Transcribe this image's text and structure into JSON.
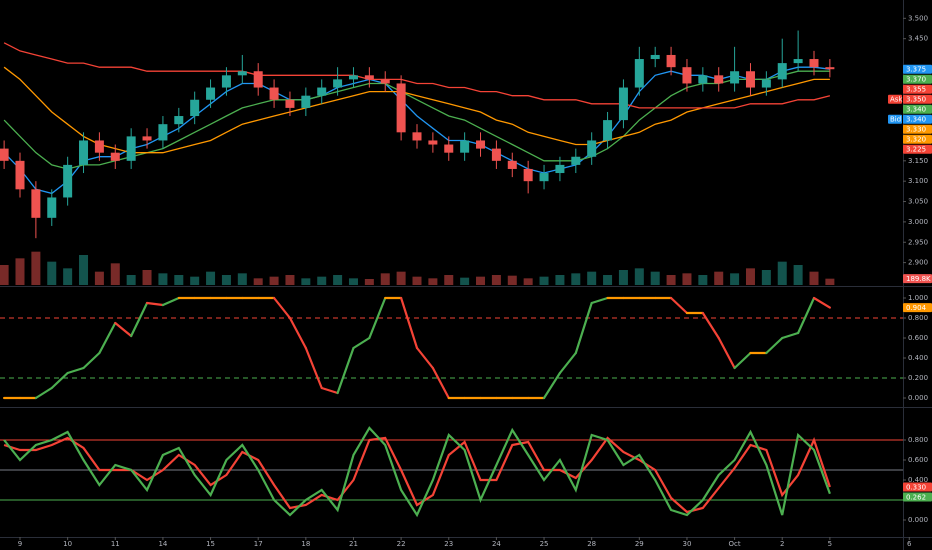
{
  "chart_data": [
    {
      "type": "candlestick",
      "open": [
        3.18,
        3.15,
        3.08,
        3.01,
        3.06,
        3.14,
        3.2,
        3.17,
        3.15,
        3.21,
        3.2,
        3.24,
        3.26,
        3.3,
        3.33,
        3.36,
        3.37,
        3.33,
        3.3,
        3.28,
        3.31,
        3.33,
        3.35,
        3.36,
        3.35,
        3.34,
        3.22,
        3.2,
        3.19,
        3.17,
        3.2,
        3.18,
        3.15,
        3.13,
        3.1,
        3.12,
        3.14,
        3.16,
        3.2,
        3.25,
        3.33,
        3.4,
        3.41,
        3.38,
        3.34,
        3.36,
        3.34,
        3.37,
        3.33,
        3.35,
        3.39,
        3.4,
        3.38
      ],
      "high": [
        3.2,
        3.17,
        3.1,
        3.08,
        3.16,
        3.22,
        3.22,
        3.19,
        3.23,
        3.23,
        3.26,
        3.28,
        3.32,
        3.35,
        3.38,
        3.41,
        3.39,
        3.35,
        3.32,
        3.33,
        3.35,
        3.38,
        3.38,
        3.38,
        3.37,
        3.36,
        3.24,
        3.22,
        3.21,
        3.22,
        3.22,
        3.2,
        3.17,
        3.15,
        3.14,
        3.16,
        3.18,
        3.22,
        3.27,
        3.35,
        3.43,
        3.43,
        3.43,
        3.4,
        3.38,
        3.38,
        3.43,
        3.39,
        3.37,
        3.45,
        3.47,
        3.42,
        3.4
      ],
      "low": [
        3.13,
        3.06,
        2.96,
        2.99,
        3.04,
        3.12,
        3.15,
        3.13,
        3.13,
        3.18,
        3.18,
        3.22,
        3.24,
        3.28,
        3.31,
        3.34,
        3.31,
        3.28,
        3.26,
        3.26,
        3.29,
        3.31,
        3.33,
        3.33,
        3.32,
        3.2,
        3.18,
        3.17,
        3.15,
        3.15,
        3.16,
        3.13,
        3.11,
        3.07,
        3.08,
        3.1,
        3.12,
        3.14,
        3.18,
        3.23,
        3.31,
        3.38,
        3.36,
        3.32,
        3.32,
        3.32,
        3.32,
        3.31,
        3.31,
        3.33,
        3.37,
        3.36,
        3.355
      ],
      "close": [
        3.15,
        3.08,
        3.01,
        3.06,
        3.14,
        3.2,
        3.17,
        3.15,
        3.21,
        3.2,
        3.24,
        3.26,
        3.3,
        3.33,
        3.36,
        3.37,
        3.33,
        3.3,
        3.28,
        3.31,
        3.33,
        3.35,
        3.36,
        3.35,
        3.34,
        3.22,
        3.2,
        3.19,
        3.17,
        3.2,
        3.18,
        3.15,
        3.13,
        3.1,
        3.12,
        3.14,
        3.16,
        3.2,
        3.25,
        3.33,
        3.4,
        3.41,
        3.38,
        3.34,
        3.36,
        3.34,
        3.37,
        3.33,
        3.35,
        3.39,
        3.4,
        3.38,
        3.375
      ],
      "volume": [
        600,
        800,
        1000,
        700,
        500,
        900,
        400,
        650,
        300,
        450,
        350,
        300,
        250,
        400,
        300,
        350,
        200,
        250,
        300,
        200,
        250,
        300,
        200,
        180,
        350,
        400,
        250,
        200,
        300,
        220,
        250,
        300,
        280,
        200,
        250,
        300,
        350,
        400,
        300,
        450,
        500,
        400,
        300,
        350,
        300,
        400,
        350,
        500,
        450,
        700,
        600,
        400,
        189.8
      ],
      "volume_tag": {
        "value": 189.8,
        "label": "189.8K",
        "color": "#ef5350"
      },
      "vlim": [
        0,
        1500
      ],
      "up_color": "#26a69a",
      "down_color": "#ef5350",
      "ylim": [
        2.845,
        3.545
      ],
      "yticks": [
        {
          "value": 3.5,
          "label": "3.500"
        },
        {
          "value": 3.45,
          "label": "3.450"
        },
        {
          "value": 3.15,
          "label": "3.150"
        },
        {
          "value": 3.1,
          "label": "3.100"
        },
        {
          "value": 3.05,
          "label": "3.050"
        },
        {
          "value": 3.0,
          "label": "3.000"
        },
        {
          "value": 2.95,
          "label": "2.950"
        },
        {
          "value": 2.9,
          "label": "2.900"
        }
      ],
      "series": [
        {
          "color": "#2196f3",
          "values": [
            3.17,
            3.13,
            3.08,
            3.07,
            3.1,
            3.15,
            3.16,
            3.16,
            3.18,
            3.19,
            3.21,
            3.23,
            3.26,
            3.29,
            3.32,
            3.34,
            3.34,
            3.32,
            3.3,
            3.3,
            3.31,
            3.33,
            3.34,
            3.35,
            3.34,
            3.3,
            3.26,
            3.23,
            3.2,
            3.2,
            3.19,
            3.17,
            3.15,
            3.13,
            3.12,
            3.13,
            3.14,
            3.17,
            3.21,
            3.26,
            3.32,
            3.36,
            3.37,
            3.36,
            3.36,
            3.35,
            3.36,
            3.35,
            3.35,
            3.37,
            3.38,
            3.38,
            3.375
          ]
        },
        {
          "color": "#4caf50",
          "values": [
            3.25,
            3.21,
            3.17,
            3.14,
            3.13,
            3.14,
            3.14,
            3.15,
            3.16,
            3.17,
            3.18,
            3.2,
            3.22,
            3.24,
            3.26,
            3.28,
            3.29,
            3.3,
            3.3,
            3.3,
            3.31,
            3.32,
            3.33,
            3.34,
            3.34,
            3.32,
            3.3,
            3.28,
            3.26,
            3.25,
            3.23,
            3.21,
            3.19,
            3.17,
            3.15,
            3.15,
            3.15,
            3.16,
            3.18,
            3.21,
            3.25,
            3.28,
            3.31,
            3.33,
            3.34,
            3.34,
            3.35,
            3.35,
            3.35,
            3.36,
            3.37,
            3.37,
            3.37
          ]
        },
        {
          "color": "#ff9800",
          "values": [
            3.38,
            3.35,
            3.31,
            3.27,
            3.24,
            3.21,
            3.19,
            3.18,
            3.17,
            3.17,
            3.17,
            3.18,
            3.19,
            3.2,
            3.22,
            3.24,
            3.25,
            3.26,
            3.27,
            3.28,
            3.29,
            3.3,
            3.31,
            3.32,
            3.32,
            3.32,
            3.31,
            3.3,
            3.29,
            3.28,
            3.27,
            3.25,
            3.24,
            3.22,
            3.21,
            3.2,
            3.19,
            3.19,
            3.2,
            3.21,
            3.22,
            3.24,
            3.25,
            3.27,
            3.28,
            3.29,
            3.3,
            3.31,
            3.32,
            3.33,
            3.34,
            3.35,
            3.35
          ]
        },
        {
          "color": "#f44336",
          "values": [
            3.44,
            3.42,
            3.41,
            3.4,
            3.39,
            3.39,
            3.38,
            3.38,
            3.38,
            3.37,
            3.37,
            3.37,
            3.37,
            3.37,
            3.37,
            3.37,
            3.36,
            3.36,
            3.36,
            3.36,
            3.36,
            3.36,
            3.36,
            3.35,
            3.35,
            3.35,
            3.34,
            3.34,
            3.33,
            3.33,
            3.32,
            3.32,
            3.31,
            3.31,
            3.3,
            3.3,
            3.3,
            3.29,
            3.29,
            3.29,
            3.28,
            3.28,
            3.28,
            3.28,
            3.28,
            3.28,
            3.28,
            3.29,
            3.29,
            3.29,
            3.3,
            3.3,
            3.31
          ]
        }
      ],
      "price_tags": [
        {
          "value": 3.375,
          "label": "3.375",
          "color": "#2196f3"
        },
        {
          "value": 3.37,
          "label": "3.370",
          "color": "#4caf50"
        },
        {
          "value": 3.355,
          "label": "3.355",
          "color": "#f44336"
        },
        {
          "value": 3.35,
          "label": "3.350",
          "color": "#f44336",
          "side": "Ask"
        },
        {
          "value": 3.34,
          "label": "3.340",
          "color": "#4caf50"
        },
        {
          "value": 3.34,
          "label": "3.340",
          "color": "#2196f3",
          "side": "Bid"
        },
        {
          "value": 3.33,
          "label": "3.330",
          "color": "#ff9800"
        },
        {
          "value": 3.32,
          "label": "3.320",
          "color": "#ff9800"
        },
        {
          "value": 3.225,
          "label": "3.225",
          "color": "#f44336"
        }
      ]
    },
    {
      "type": "line",
      "values": [
        0,
        0,
        0,
        0.1,
        0.25,
        0.3,
        0.45,
        0.75,
        0.62,
        0.95,
        0.93,
        1,
        1,
        1,
        1,
        1,
        1,
        1,
        0.8,
        0.5,
        0.1,
        0.05,
        0.5,
        0.6,
        1,
        1,
        0.5,
        0.3,
        0,
        0,
        0,
        0,
        0,
        0,
        0,
        0.25,
        0.45,
        0.95,
        1,
        1,
        1,
        1,
        1,
        0.85,
        0.85,
        0.6,
        0.3,
        0.45,
        0.45,
        0.6,
        0.65,
        1,
        0.904
      ],
      "colors": {
        "up": "#4caf50",
        "down": "#f44336",
        "flat": "#ff9800"
      },
      "ylim": [
        -0.07,
        1.1
      ],
      "yticks": [
        {
          "value": 1,
          "label": "1.000"
        },
        {
          "value": 0.8,
          "label": "0.800"
        },
        {
          "value": 0.6,
          "label": "0.600"
        },
        {
          "value": 0.4,
          "label": "0.400"
        },
        {
          "value": 0.2,
          "label": "0.200"
        },
        {
          "value": 0,
          "label": "0.000"
        }
      ],
      "levels": [
        {
          "value": 0.8,
          "color": "#f44336",
          "dashed": true
        },
        {
          "value": 0.2,
          "color": "#4caf50",
          "dashed": true
        }
      ],
      "tags": [
        {
          "value": 0.904,
          "label": "0.904",
          "color": "#ff9800"
        }
      ]
    },
    {
      "type": "line",
      "series": [
        {
          "color": "#f44336",
          "values": [
            0.75,
            0.7,
            0.7,
            0.75,
            0.82,
            0.72,
            0.5,
            0.5,
            0.5,
            0.4,
            0.5,
            0.65,
            0.55,
            0.35,
            0.45,
            0.68,
            0.6,
            0.35,
            0.12,
            0.15,
            0.25,
            0.2,
            0.4,
            0.8,
            0.82,
            0.5,
            0.15,
            0.25,
            0.65,
            0.78,
            0.4,
            0.4,
            0.75,
            0.78,
            0.5,
            0.5,
            0.42,
            0.6,
            0.82,
            0.68,
            0.6,
            0.5,
            0.22,
            0.08,
            0.12,
            0.32,
            0.52,
            0.75,
            0.7,
            0.25,
            0.45,
            0.8,
            0.33
          ]
        },
        {
          "color": "#4caf50",
          "values": [
            0.8,
            0.6,
            0.75,
            0.8,
            0.88,
            0.6,
            0.35,
            0.55,
            0.5,
            0.3,
            0.65,
            0.72,
            0.45,
            0.25,
            0.6,
            0.75,
            0.5,
            0.2,
            0.05,
            0.2,
            0.3,
            0.1,
            0.65,
            0.92,
            0.75,
            0.3,
            0.05,
            0.4,
            0.85,
            0.7,
            0.2,
            0.55,
            0.9,
            0.65,
            0.4,
            0.6,
            0.3,
            0.85,
            0.8,
            0.55,
            0.65,
            0.4,
            0.1,
            0.05,
            0.2,
            0.45,
            0.6,
            0.88,
            0.55,
            0.05,
            0.85,
            0.7,
            0.262
          ]
        }
      ],
      "ylim": [
        -0.17,
        1.1
      ],
      "yticks": [
        {
          "value": 0.8,
          "label": "0.800"
        },
        {
          "value": 0.6,
          "label": "0.600"
        },
        {
          "value": 0.4,
          "label": "0.400"
        },
        {
          "value": 0,
          "label": "0.000"
        }
      ],
      "levels": [
        {
          "value": 0.8,
          "color": "#f44336",
          "dashed": false
        },
        {
          "value": 0.5,
          "color": "#787b86",
          "dashed": false
        },
        {
          "value": 0.2,
          "color": "#4caf50",
          "dashed": false
        }
      ],
      "tags": [
        {
          "value": 0.33,
          "label": "0.330",
          "color": "#f44336"
        },
        {
          "value": 0.262,
          "label": "0.262",
          "color": "#4caf50"
        }
      ],
      "xticks": [
        {
          "value": 1,
          "label": "9"
        },
        {
          "value": 4,
          "label": "10"
        },
        {
          "value": 7,
          "label": "11"
        },
        {
          "value": 10,
          "label": "14"
        },
        {
          "value": 13,
          "label": "15"
        },
        {
          "value": 16,
          "label": "17"
        },
        {
          "value": 19,
          "label": "18"
        },
        {
          "value": 22,
          "label": "21"
        },
        {
          "value": 25,
          "label": "22"
        },
        {
          "value": 28,
          "label": "23"
        },
        {
          "value": 31,
          "label": "24"
        },
        {
          "value": 34,
          "label": "25"
        },
        {
          "value": 37,
          "label": "28"
        },
        {
          "value": 40,
          "label": "29"
        },
        {
          "value": 43,
          "label": "30"
        },
        {
          "value": 46,
          "label": "Oct"
        },
        {
          "value": 49,
          "label": "2"
        },
        {
          "value": 52,
          "label": "5"
        },
        {
          "value": 57,
          "label": "6"
        }
      ]
    }
  ]
}
